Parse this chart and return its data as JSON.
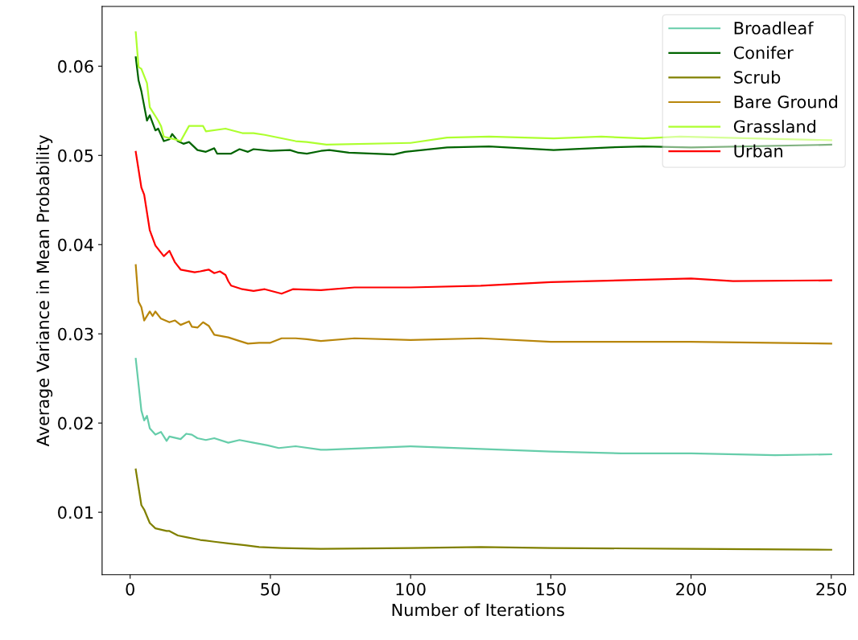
{
  "chart_data": {
    "type": "line",
    "xlabel": "Number of Iterations",
    "ylabel": "Average Variance in Mean Probability",
    "xlim": [
      -10,
      258
    ],
    "ylim": [
      0.003,
      0.0667
    ],
    "xticks": [
      0,
      50,
      100,
      150,
      200,
      250
    ],
    "yticks": [
      0.01,
      0.02,
      0.03,
      0.04,
      0.05,
      0.06
    ],
    "grid": false,
    "legend": "top right",
    "line_style": "solid",
    "marker": "none",
    "series": [
      {
        "name": "Broadleaf",
        "color": "#66cdaa",
        "x": [
          2,
          4,
          5,
          6,
          7,
          9,
          11,
          13,
          14,
          18,
          20,
          22,
          24,
          27,
          30,
          35,
          39,
          44,
          49,
          53,
          59,
          68,
          70,
          100,
          125,
          150,
          175,
          200,
          230,
          250
        ],
        "values": [
          0.0272,
          0.0214,
          0.0203,
          0.0208,
          0.0194,
          0.0187,
          0.019,
          0.018,
          0.0185,
          0.0182,
          0.0188,
          0.0187,
          0.0183,
          0.0181,
          0.0183,
          0.0178,
          0.0181,
          0.0178,
          0.0175,
          0.0172,
          0.0174,
          0.017,
          0.017,
          0.0174,
          0.0171,
          0.0168,
          0.0166,
          0.0166,
          0.0164,
          0.0165
        ]
      },
      {
        "name": "Conifer",
        "color": "#006400",
        "x": [
          2,
          3,
          4,
          6,
          7,
          9,
          10,
          12,
          14,
          15,
          17,
          19,
          21,
          24,
          27,
          30,
          31,
          36,
          39,
          42,
          44,
          50,
          57,
          60,
          63,
          68,
          71,
          78,
          94,
          98,
          113,
          128,
          151,
          171,
          183,
          200,
          250
        ],
        "values": [
          0.061,
          0.0584,
          0.0572,
          0.0539,
          0.0545,
          0.0528,
          0.053,
          0.0516,
          0.0518,
          0.0524,
          0.0516,
          0.0513,
          0.0515,
          0.0506,
          0.0504,
          0.0508,
          0.0502,
          0.0502,
          0.0507,
          0.0504,
          0.0507,
          0.0505,
          0.0506,
          0.0503,
          0.0502,
          0.0505,
          0.0506,
          0.0503,
          0.0501,
          0.0504,
          0.0509,
          0.051,
          0.0506,
          0.0509,
          0.051,
          0.0509,
          0.0512
        ]
      },
      {
        "name": "Scrub",
        "color": "#808000",
        "x": [
          2,
          4,
          5,
          7,
          9,
          13,
          14,
          17,
          20,
          25,
          30,
          35,
          41,
          46,
          54,
          68,
          100,
          125,
          150,
          200,
          250
        ],
        "values": [
          0.0148,
          0.0108,
          0.0103,
          0.0088,
          0.0082,
          0.0079,
          0.0079,
          0.0074,
          0.0072,
          0.0069,
          0.0067,
          0.0065,
          0.0063,
          0.0061,
          0.006,
          0.0059,
          0.006,
          0.0061,
          0.006,
          0.0059,
          0.0058
        ]
      },
      {
        "name": "Bare Ground",
        "color": "#b8860b",
        "x": [
          2,
          3,
          4,
          5,
          7,
          8,
          9,
          11,
          14,
          16,
          18,
          21,
          22,
          24,
          26,
          28,
          30,
          35,
          39,
          42,
          46,
          50,
          54,
          59,
          63,
          68,
          80,
          100,
          125,
          150,
          200,
          250
        ],
        "values": [
          0.0377,
          0.0336,
          0.033,
          0.0315,
          0.0325,
          0.032,
          0.0325,
          0.0317,
          0.0313,
          0.0315,
          0.031,
          0.0314,
          0.0308,
          0.0307,
          0.0313,
          0.0309,
          0.0299,
          0.0296,
          0.0292,
          0.0289,
          0.029,
          0.029,
          0.0295,
          0.0295,
          0.0294,
          0.0292,
          0.0295,
          0.0293,
          0.0295,
          0.0291,
          0.0291,
          0.0289
        ]
      },
      {
        "name": "Grassland",
        "color": "#adff2f",
        "x": [
          2,
          3,
          4,
          6,
          7,
          10,
          11,
          12,
          16,
          18,
          21,
          26,
          27,
          34,
          40,
          44,
          48,
          59,
          63,
          70,
          100,
          113,
          128,
          151,
          168,
          183,
          196,
          250
        ],
        "values": [
          0.0638,
          0.0599,
          0.0597,
          0.0581,
          0.0554,
          0.0539,
          0.0533,
          0.0521,
          0.0518,
          0.0516,
          0.0533,
          0.0533,
          0.0527,
          0.053,
          0.0525,
          0.0525,
          0.0523,
          0.0516,
          0.0515,
          0.0512,
          0.0514,
          0.052,
          0.0521,
          0.0519,
          0.0521,
          0.0519,
          0.0521,
          0.0517
        ]
      },
      {
        "name": "Urban",
        "color": "#ff0000",
        "x": [
          2,
          4,
          5,
          7,
          9,
          12,
          14,
          16,
          18,
          23,
          25,
          28,
          30,
          32,
          34,
          35,
          36,
          40,
          44,
          48,
          54,
          58,
          68,
          80,
          100,
          125,
          150,
          175,
          200,
          215,
          250
        ],
        "values": [
          0.0504,
          0.0464,
          0.0456,
          0.0416,
          0.0399,
          0.0387,
          0.0393,
          0.038,
          0.0372,
          0.0369,
          0.037,
          0.0372,
          0.0368,
          0.037,
          0.0366,
          0.0359,
          0.0354,
          0.035,
          0.0348,
          0.035,
          0.0345,
          0.035,
          0.0349,
          0.0352,
          0.0352,
          0.0354,
          0.0358,
          0.036,
          0.0362,
          0.0359,
          0.036
        ]
      }
    ]
  }
}
